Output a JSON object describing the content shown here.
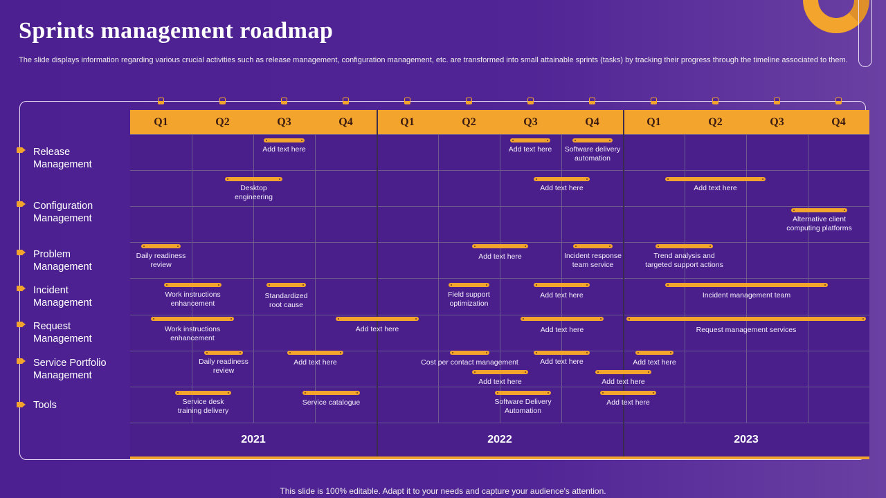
{
  "title": "Sprints management roadmap",
  "description": "The slide displays information regarding various crucial activities such as release management, configuration management, etc. are transformed into small attainable sprints (tasks) by tracking their progress through the timeline associated to them.",
  "quarters": [
    "Q1",
    "Q2",
    "Q3",
    "Q4",
    "Q1",
    "Q2",
    "Q3",
    "Q4",
    "Q1",
    "Q2",
    "Q3",
    "Q4"
  ],
  "years": [
    "2021",
    "2022",
    "2023"
  ],
  "rows": [
    "Release\nManagement",
    "Configuration\nManagement",
    "Problem\nManagement",
    "Incident\nManagement",
    "Request\nManagement",
    "Service Portfolio\nManagement",
    "Tools"
  ],
  "sprints": [
    "Add text here",
    "Add text here",
    "Software delivery\nautomation",
    "Desktop\nengineering",
    "Add text here",
    "Add text here",
    "Alternative client\ncomputing platforms",
    "Daily readiness\nreview",
    "Add text here",
    "Incident response\nteam service",
    "Trend analysis and\ntargeted support actions",
    "Work instructions\nenhancement",
    "Standardized\nroot cause",
    "Field support\noptimization",
    "Add text here",
    "Incident management team",
    "Work instructions\nenhancement",
    "Add text here",
    "Add text here",
    "Request management services",
    "Daily readiness\nreview",
    "Add text here",
    "Cost per contact management",
    "Add text here",
    "Add text here",
    "Add text here",
    "Add text here",
    "Service desk\ntraining delivery",
    "Service catalogue",
    "Software Delivery\nAutomation",
    "Add text here"
  ],
  "footer": "This slide is 100% editable. Adapt it to your needs and capture your audience's attention.",
  "colors": {
    "accent": "#f3a42c",
    "background": "#4c2090",
    "grid": "#4a1f8c"
  }
}
